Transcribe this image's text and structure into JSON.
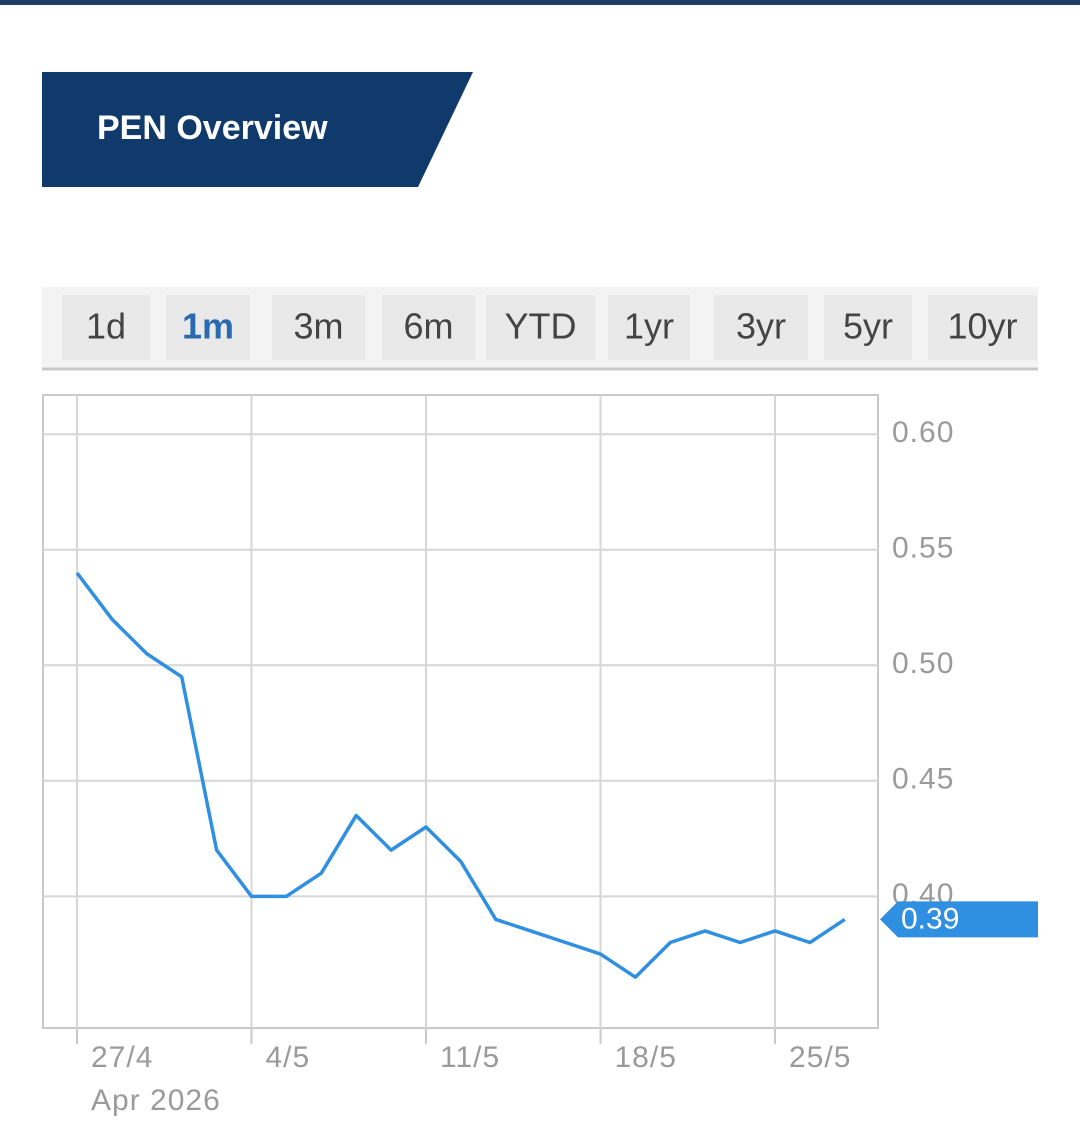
{
  "header": {
    "title": "PEN Overview"
  },
  "range_tabs": {
    "items": [
      "1d",
      "1m",
      "3m",
      "6m",
      "YTD",
      "1yr",
      "3yr",
      "5yr",
      "10yr"
    ],
    "active_index": 1
  },
  "chart_data": {
    "type": "line",
    "categories": [
      "27/4",
      null,
      null,
      null,
      null,
      "4/5",
      null,
      null,
      null,
      null,
      "11/5",
      null,
      null,
      null,
      null,
      "18/5",
      null,
      null,
      null,
      null,
      "25/5",
      null,
      null
    ],
    "x_sublabel": "Apr 2026",
    "series": [
      {
        "name": "PEN",
        "color": "#2f8fe0",
        "values": [
          0.54,
          0.52,
          0.505,
          0.495,
          0.42,
          0.4,
          0.4,
          0.41,
          0.435,
          0.42,
          0.43,
          0.415,
          0.39,
          0.385,
          0.38,
          0.375,
          0.365,
          0.38,
          0.385,
          0.38,
          0.385,
          0.38,
          0.39
        ]
      }
    ],
    "current_label": "0.39",
    "ylim": [
      0.343,
      0.617
    ],
    "yticks": [
      {
        "value": 0.6,
        "label": "0.60"
      },
      {
        "value": 0.55,
        "label": "0.55"
      },
      {
        "value": 0.5,
        "label": "0.50"
      },
      0.45,
      {
        "value": 0.4,
        "label": "0.40"
      }
    ],
    "grid": true
  }
}
